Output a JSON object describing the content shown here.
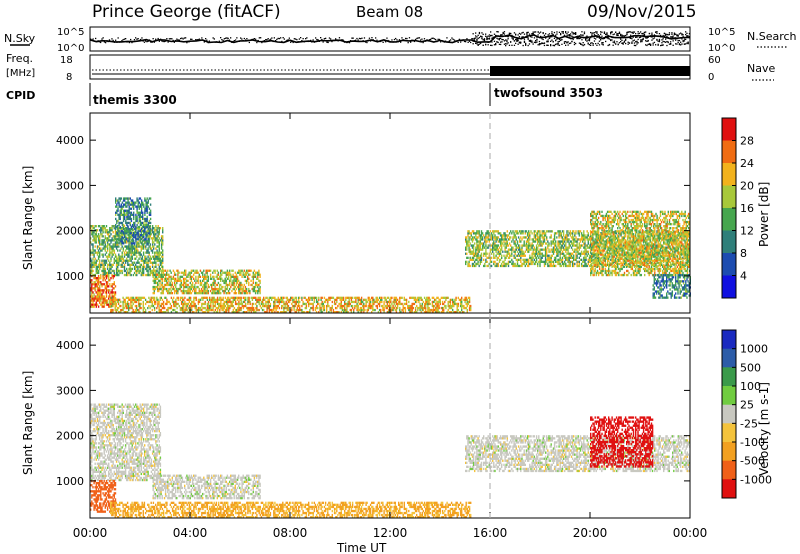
{
  "header": {
    "station": "Prince George (fitACF)",
    "beam": "Beam 08",
    "date": "09/Nov/2015"
  },
  "top_panels": {
    "nsky_label": "N.Sky",
    "nsearch_label": "N.Search",
    "freq_label": "Freq.",
    "freq_unit": "[MHz]",
    "nave_label": "Nave",
    "cpid_label": "CPID",
    "noise_ticks_left": [
      "10^5",
      "10^0"
    ],
    "noise_ticks_right": [
      "10^5",
      "10^0"
    ],
    "freq_ticks": [
      "18",
      "8"
    ],
    "nave_ticks": [
      "60",
      "0"
    ],
    "cpid_segments": [
      {
        "name": "themis 3300",
        "start_hour": 0
      },
      {
        "name": "twofsound 3503",
        "start_hour": 16
      }
    ]
  },
  "chart_data": [
    {
      "type": "heatmap",
      "title": "",
      "xlabel": "",
      "ylabel": "Slant Range [km]",
      "xlim": [
        0,
        24
      ],
      "ylim": [
        180,
        4600
      ],
      "x_ticks": [
        0,
        4,
        8,
        12,
        16,
        20,
        24
      ],
      "y_ticks": [
        1000,
        2000,
        3000,
        4000
      ],
      "y_tick_labels": [
        "1000",
        "2000",
        "3000",
        "4000"
      ],
      "colorbar": {
        "label": "Power [dB]",
        "tick_labels": [
          "4",
          "8",
          "12",
          "16",
          "20",
          "24",
          "28"
        ],
        "range": [
          0,
          30
        ],
        "colors": [
          "#1010e0",
          "#1c4cb0",
          "#2f7f7a",
          "#46a64e",
          "#a8c83a",
          "#f2b21c",
          "#f06c12",
          "#e01010"
        ]
      },
      "echo_regions": [
        {
          "t_start": 0.0,
          "t_end": 2.9,
          "range_start": 1000,
          "range_end": 2100,
          "level": 14
        },
        {
          "t_start": 0.0,
          "t_end": 1.0,
          "range_start": 300,
          "range_end": 1000,
          "level": 24
        },
        {
          "t_start": 1.0,
          "t_end": 2.4,
          "range_start": 1700,
          "range_end": 2700,
          "level": 10
        },
        {
          "t_start": 2.5,
          "t_end": 6.8,
          "range_start": 600,
          "range_end": 1100,
          "level": 18
        },
        {
          "t_start": 0.8,
          "t_end": 15.2,
          "range_start": 180,
          "range_end": 500,
          "level": 20
        },
        {
          "t_start": 15.0,
          "t_end": 24.0,
          "range_start": 1200,
          "range_end": 2000,
          "level": 16
        },
        {
          "t_start": 20.0,
          "t_end": 24.0,
          "range_start": 1000,
          "range_end": 2400,
          "level": 18
        },
        {
          "t_start": 22.5,
          "t_end": 24.0,
          "range_start": 500,
          "range_end": 1000,
          "level": 10
        }
      ]
    },
    {
      "type": "heatmap",
      "title": "",
      "xlabel": "Time UT",
      "ylabel": "Slant Range [km]",
      "xlim": [
        0,
        24
      ],
      "ylim": [
        180,
        4600
      ],
      "x_ticks": [
        0,
        4,
        8,
        12,
        16,
        20,
        24
      ],
      "x_tick_labels": [
        "00:00",
        "04:00",
        "08:00",
        "12:00",
        "16:00",
        "20:00",
        "00:00"
      ],
      "y_ticks": [
        1000,
        2000,
        3000,
        4000
      ],
      "y_tick_labels": [
        "1000",
        "2000",
        "3000",
        "4000"
      ],
      "colorbar": {
        "label": "Velocity [m s-1]",
        "tick_labels": [
          "1000",
          "500",
          "100",
          "25",
          "-25",
          "-100",
          "-500",
          "-1000"
        ],
        "range": [
          -1000,
          1000
        ],
        "colors": [
          "#e01010",
          "#f06018",
          "#f2a020",
          "#f4c33c",
          "#c8c8c0",
          "#70cc40",
          "#3a9a4a",
          "#2c5ca8",
          "#1a2ac0"
        ]
      },
      "echo_regions": [
        {
          "t_start": 0.0,
          "t_end": 2.8,
          "range_start": 1000,
          "range_end": 2700,
          "level": 0
        },
        {
          "t_start": 0.0,
          "t_end": 1.0,
          "range_start": 300,
          "range_end": 1000,
          "level": -250
        },
        {
          "t_start": 2.5,
          "t_end": 6.8,
          "range_start": 600,
          "range_end": 1100,
          "level": 0
        },
        {
          "t_start": 0.8,
          "t_end": 15.2,
          "range_start": 180,
          "range_end": 500,
          "level": -60
        },
        {
          "t_start": 15.0,
          "t_end": 24.0,
          "range_start": 1200,
          "range_end": 2000,
          "level": 0
        },
        {
          "t_start": 20.0,
          "t_end": 22.5,
          "range_start": 1300,
          "range_end": 2400,
          "level": -700
        }
      ]
    }
  ]
}
